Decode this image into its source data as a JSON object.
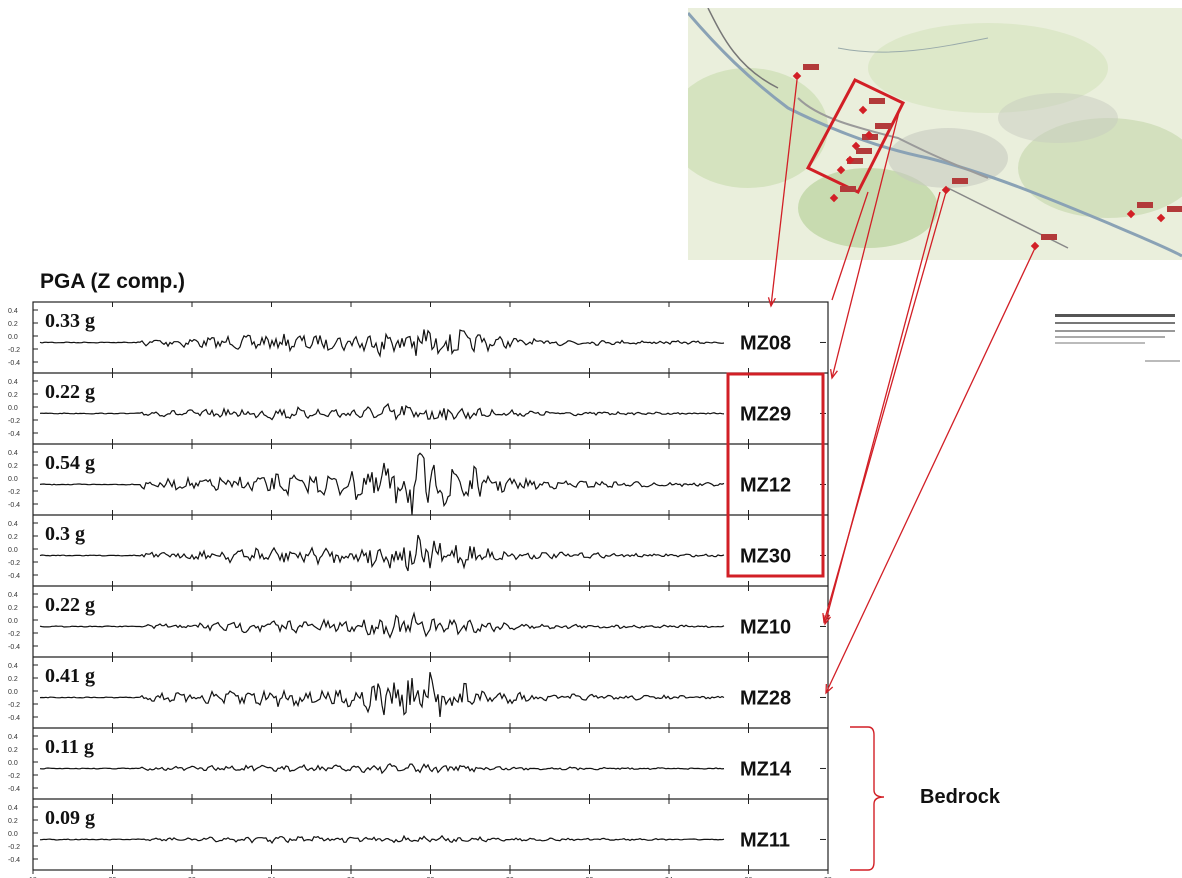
{
  "title": "PGA (Z comp.)",
  "group_label": "Bedrock",
  "traces": [
    {
      "station": "MZ08",
      "pga": "0.33 g"
    },
    {
      "station": "MZ29",
      "pga": "0.22 g"
    },
    {
      "station": "MZ12",
      "pga": "0.54 g"
    },
    {
      "station": "MZ30",
      "pga": "0.3 g"
    },
    {
      "station": "MZ10",
      "pga": "0.22 g"
    },
    {
      "station": "MZ28",
      "pga": "0.41 g"
    },
    {
      "station": "MZ14",
      "pga": "0.11 g"
    },
    {
      "station": "MZ11",
      "pga": "0.09 g"
    }
  ],
  "trace_energy": [
    0.75,
    0.55,
    1.0,
    0.75,
    0.6,
    0.85,
    0.35,
    0.3
  ],
  "colors": {
    "highlight": "#d21f26",
    "trace": "#111111",
    "map_land": "#e6ecd7"
  }
}
